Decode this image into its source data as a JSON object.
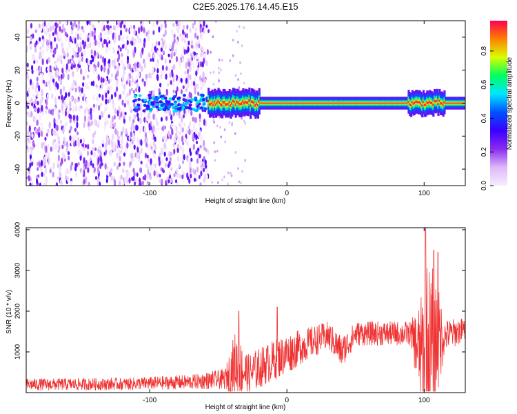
{
  "title": "C2E5.2025.176.14.45.E15",
  "chart_data": [
    {
      "type": "heatmap",
      "panel": "spectrogram",
      "xlabel": "Height of straight line (km)",
      "ylabel": "Frequency (Hz)",
      "xlim": [
        -190,
        130
      ],
      "ylim": [
        -50,
        50
      ],
      "x_ticks": [
        -100,
        0,
        100
      ],
      "y_ticks": [
        -40,
        -20,
        0,
        20,
        40
      ],
      "colorbar": {
        "label": "Normalized spectral amplitude",
        "range": [
          0,
          0.98
        ],
        "ticks": [
          "0.0",
          "0.2",
          "0.4",
          "0.6",
          "0.8"
        ],
        "colormap": [
          "#f7eefe",
          "#ddb8f8",
          "#8a2cf0",
          "#3a00ff",
          "#0050ff",
          "#00e5ff",
          "#00ff60",
          "#d8ff00",
          "#ff8000",
          "#ff0050"
        ]
      },
      "features": {
        "noise_region_x": [
          -190,
          -57
        ],
        "transition_x": [
          -57,
          -30
        ],
        "carrier_frequency": 0,
        "carrier_start_x": -57,
        "band_perturbation_x": [
          88,
          115
        ]
      }
    },
    {
      "type": "line",
      "panel": "snr",
      "xlabel": "Height of straight line (km)",
      "ylabel": "SNR (10 * v/v)",
      "xlim": [
        -190,
        130
      ],
      "ylim": [
        0,
        4050
      ],
      "x_ticks": [
        -100,
        0,
        100
      ],
      "y_ticks": [
        1000,
        2000,
        3000,
        4000
      ],
      "series_color": "#f03030",
      "envelope": [
        {
          "x": -190,
          "baseline": 200,
          "spread": 150
        },
        {
          "x": -120,
          "baseline": 210,
          "spread": 150
        },
        {
          "x": -70,
          "baseline": 260,
          "spread": 180
        },
        {
          "x": -45,
          "baseline": 330,
          "spread": 250
        },
        {
          "x": -38,
          "baseline": 700,
          "spread": 800
        },
        {
          "x": -28,
          "baseline": 450,
          "spread": 500
        },
        {
          "x": -15,
          "baseline": 700,
          "spread": 500
        },
        {
          "x": 0,
          "baseline": 950,
          "spread": 500
        },
        {
          "x": 15,
          "baseline": 1200,
          "spread": 400
        },
        {
          "x": 30,
          "baseline": 1400,
          "spread": 350
        },
        {
          "x": 40,
          "baseline": 1000,
          "spread": 400
        },
        {
          "x": 50,
          "baseline": 1450,
          "spread": 300
        },
        {
          "x": 90,
          "baseline": 1450,
          "spread": 300
        },
        {
          "x": 97,
          "baseline": 1000,
          "spread": 1200
        },
        {
          "x": 102,
          "baseline": 800,
          "spread": 2500
        },
        {
          "x": 108,
          "baseline": 1200,
          "spread": 1800
        },
        {
          "x": 115,
          "baseline": 1400,
          "spread": 400
        },
        {
          "x": 130,
          "baseline": 1550,
          "spread": 300
        }
      ],
      "peaks": [
        {
          "x": -35,
          "y": 2000
        },
        {
          "x": -7,
          "y": 2100
        },
        {
          "x": 101,
          "y": 4050
        },
        {
          "x": 107,
          "y": 3500
        },
        {
          "x": 110,
          "y": 3450
        }
      ]
    }
  ]
}
